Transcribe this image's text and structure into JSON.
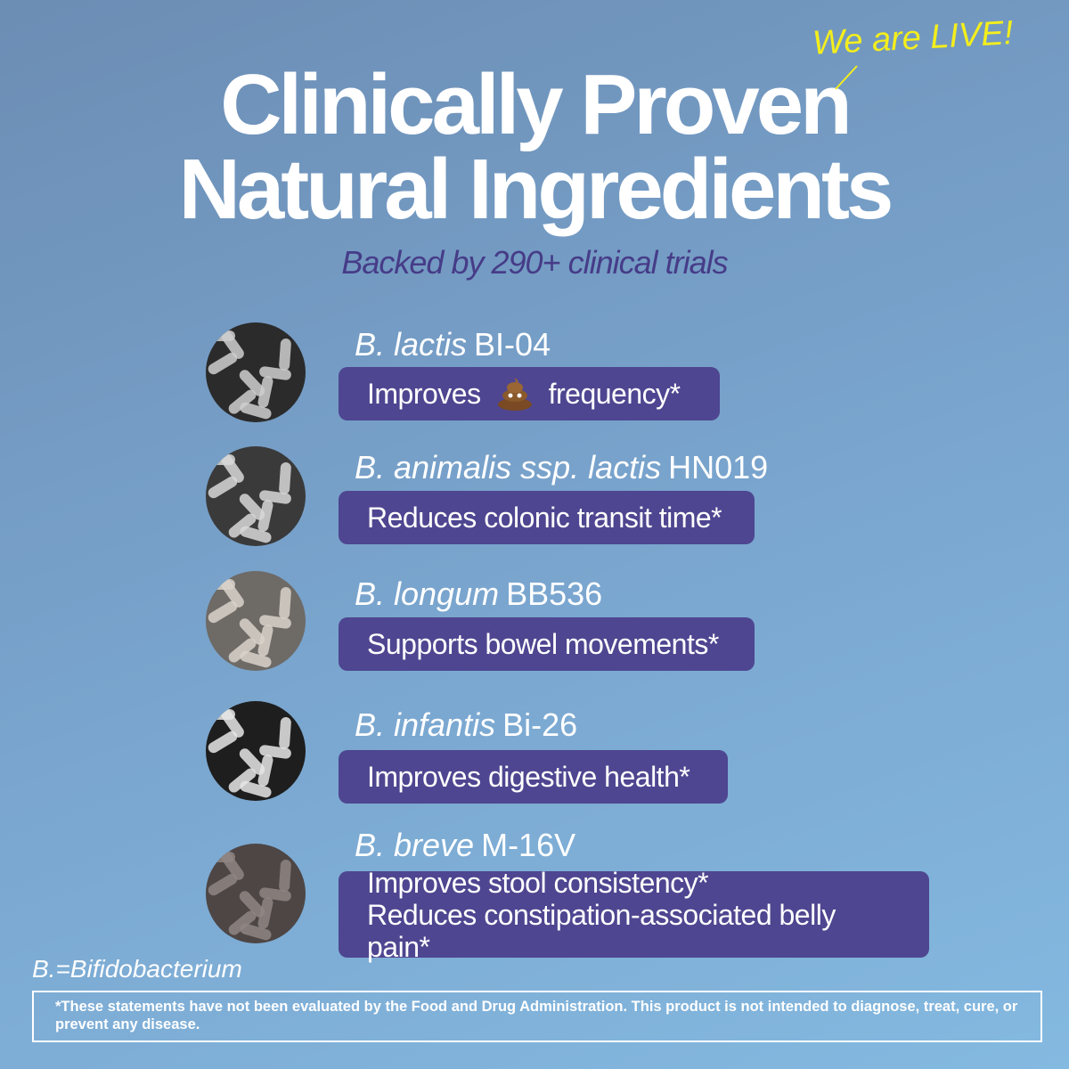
{
  "header": {
    "title_lines": [
      "Clinically Proven",
      "Natural Ingredients"
    ],
    "badge": "We are LIVE!",
    "subtitle": "Backed by 290+ clinical trials"
  },
  "items": [
    {
      "species": "B. lactis",
      "strain": "BI-04",
      "benefit": [
        "Improves",
        "frequency*"
      ]
    },
    {
      "species": "B. animalis ssp. lactis",
      "strain": "HN019",
      "benefit": [
        "Reduces colonic transit time*"
      ]
    },
    {
      "species": "B. longum",
      "strain": "BB536",
      "benefit": [
        "Supports bowel movements*"
      ]
    },
    {
      "species": "B. infantis",
      "strain": "Bi-26",
      "benefit": [
        "Improves digestive health*"
      ]
    },
    {
      "species": "B. breve",
      "strain": "M-16V",
      "benefit": [
        "Improves stool consistency*",
        "Reduces constipation-associated belly pain*"
      ]
    }
  ],
  "footnote": "B.=Bifidobacterium",
  "disclaimer": "*These statements have not been evaluated by the Food and Drug Administration. This product is not intended to diagnose, treat, cure, or prevent any disease."
}
